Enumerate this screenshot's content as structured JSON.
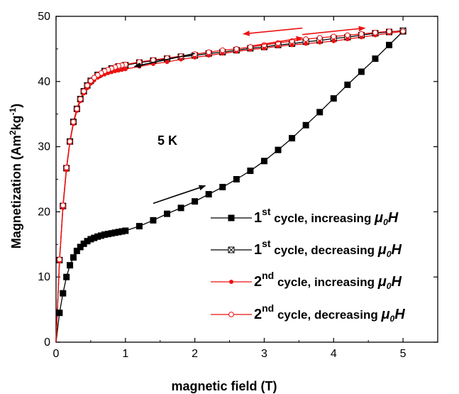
{
  "chart_data": {
    "type": "line",
    "title": "",
    "xlabel": "magnetic field (T)",
    "ylabel": {
      "main": "Magnetization (Am",
      "sup1": "2",
      "mid": "kg",
      "sup2": "-1",
      "end": ")"
    },
    "xlim": [
      0,
      5.5
    ],
    "ylim": [
      0,
      50
    ],
    "xticks": [
      0,
      1,
      2,
      3,
      4,
      5
    ],
    "yticks": [
      0,
      10,
      20,
      30,
      40,
      50
    ],
    "grid": false,
    "legend_position": "center-right",
    "annotation": "5 K",
    "series": [
      {
        "label": {
          "ord": "1",
          "sup": "st",
          "text": " cycle, increasing ",
          "mu": "μ",
          "sub": "0",
          "h": "H"
        },
        "color": "#000000",
        "marker": "filled-square",
        "points": [
          [
            0,
            0
          ],
          [
            0.05,
            4.5
          ],
          [
            0.1,
            7.5
          ],
          [
            0.15,
            10
          ],
          [
            0.2,
            11.8
          ],
          [
            0.25,
            13
          ],
          [
            0.3,
            14
          ],
          [
            0.35,
            14.6
          ],
          [
            0.4,
            15.1
          ],
          [
            0.45,
            15.5
          ],
          [
            0.5,
            15.8
          ],
          [
            0.55,
            16.0
          ],
          [
            0.6,
            16.2
          ],
          [
            0.65,
            16.35
          ],
          [
            0.7,
            16.5
          ],
          [
            0.75,
            16.6
          ],
          [
            0.8,
            16.7
          ],
          [
            0.85,
            16.8
          ],
          [
            0.9,
            16.9
          ],
          [
            0.95,
            17.0
          ],
          [
            1.0,
            17.1
          ],
          [
            1.2,
            17.8
          ],
          [
            1.4,
            18.7
          ],
          [
            1.6,
            19.7
          ],
          [
            1.8,
            20.6
          ],
          [
            2.0,
            21.6
          ],
          [
            2.2,
            22.7
          ],
          [
            2.4,
            23.8
          ],
          [
            2.6,
            25.0
          ],
          [
            2.8,
            26.3
          ],
          [
            3.0,
            27.8
          ],
          [
            3.2,
            29.5
          ],
          [
            3.4,
            31.3
          ],
          [
            3.6,
            33.3
          ],
          [
            3.8,
            35.3
          ],
          [
            4.0,
            37.4
          ],
          [
            4.2,
            39.5
          ],
          [
            4.4,
            41.5
          ],
          [
            4.6,
            43.5
          ],
          [
            4.8,
            45.6
          ],
          [
            5.0,
            47.7
          ]
        ]
      },
      {
        "label": {
          "ord": "1",
          "sup": "st",
          "text": " cycle, decreasing ",
          "mu": "μ",
          "sub": "0",
          "h": "H"
        },
        "color": "#000000",
        "marker": "crossed-square",
        "points": [
          [
            5.0,
            47.8
          ],
          [
            4.8,
            47.6
          ],
          [
            4.6,
            47.4
          ],
          [
            4.4,
            47.1
          ],
          [
            4.2,
            46.8
          ],
          [
            4.0,
            46.6
          ],
          [
            3.8,
            46.3
          ],
          [
            3.6,
            46.1
          ],
          [
            3.4,
            45.8
          ],
          [
            3.2,
            45.6
          ],
          [
            3.0,
            45.3
          ],
          [
            2.8,
            45.1
          ],
          [
            2.6,
            44.8
          ],
          [
            2.4,
            44.5
          ],
          [
            2.2,
            44.3
          ],
          [
            2.0,
            44.0
          ],
          [
            1.8,
            43.8
          ],
          [
            1.6,
            43.5
          ],
          [
            1.4,
            43.2
          ],
          [
            1.2,
            42.9
          ],
          [
            1.0,
            42.5
          ],
          [
            0.9,
            42.3
          ],
          [
            0.8,
            42.0
          ],
          [
            0.7,
            41.6
          ],
          [
            0.6,
            41.0
          ],
          [
            0.5,
            40.1
          ],
          [
            0.45,
            39.4
          ],
          [
            0.4,
            38.5
          ],
          [
            0.35,
            37.3
          ],
          [
            0.3,
            35.8
          ],
          [
            0.25,
            33.8
          ],
          [
            0.2,
            30.8
          ],
          [
            0.15,
            26.7
          ],
          [
            0.1,
            20.9
          ],
          [
            0.05,
            12.6
          ],
          [
            0,
            0
          ]
        ]
      },
      {
        "label": {
          "ord": "2",
          "sup": "nd",
          "text": " cycle, increasing ",
          "mu": "μ",
          "sub": "0",
          "h": "H"
        },
        "color": "#ee1111",
        "marker": "filled-circle",
        "points": [
          [
            0,
            0
          ],
          [
            0.05,
            12.4
          ],
          [
            0.1,
            20.6
          ],
          [
            0.15,
            26.4
          ],
          [
            0.2,
            30.6
          ],
          [
            0.25,
            33.5
          ],
          [
            0.3,
            35.5
          ],
          [
            0.35,
            37.0
          ],
          [
            0.4,
            38.2
          ],
          [
            0.45,
            39.0
          ],
          [
            0.5,
            39.7
          ],
          [
            0.55,
            40.2
          ],
          [
            0.6,
            40.6
          ],
          [
            0.65,
            40.9
          ],
          [
            0.7,
            41.1
          ],
          [
            0.75,
            41.3
          ],
          [
            0.8,
            41.45
          ],
          [
            0.85,
            41.6
          ],
          [
            0.9,
            41.7
          ],
          [
            0.95,
            41.8
          ],
          [
            1.0,
            41.9
          ],
          [
            1.2,
            42.3
          ],
          [
            1.4,
            42.7
          ],
          [
            1.6,
            43.0
          ],
          [
            1.8,
            43.4
          ],
          [
            2.0,
            43.7
          ],
          [
            2.2,
            44.0
          ],
          [
            2.4,
            44.3
          ],
          [
            2.6,
            44.6
          ],
          [
            2.8,
            44.9
          ],
          [
            3.0,
            45.1
          ],
          [
            3.2,
            45.4
          ],
          [
            3.4,
            45.6
          ],
          [
            3.6,
            45.8
          ],
          [
            3.8,
            46.0
          ],
          [
            4.0,
            46.2
          ],
          [
            4.2,
            46.5
          ],
          [
            4.4,
            46.8
          ],
          [
            4.6,
            47.1
          ],
          [
            4.8,
            47.4
          ],
          [
            5.0,
            47.7
          ]
        ]
      },
      {
        "label": {
          "ord": "2",
          "sup": "nd",
          "text": " cycle, decreasing ",
          "mu": "μ",
          "sub": "0",
          "h": "H"
        },
        "color": "#ee1111",
        "marker": "open-circle",
        "points": [
          [
            5.0,
            47.7
          ],
          [
            4.8,
            47.7
          ],
          [
            4.6,
            47.5
          ],
          [
            4.4,
            47.3
          ],
          [
            4.2,
            47.1
          ],
          [
            4.0,
            46.9
          ],
          [
            3.8,
            46.7
          ],
          [
            3.6,
            46.5
          ],
          [
            3.4,
            46.2
          ],
          [
            3.2,
            45.9
          ],
          [
            3.0,
            45.6
          ],
          [
            2.8,
            45.3
          ],
          [
            2.6,
            45.0
          ],
          [
            2.4,
            44.8
          ],
          [
            2.2,
            44.5
          ],
          [
            2.0,
            44.2
          ],
          [
            1.8,
            43.9
          ],
          [
            1.6,
            43.6
          ],
          [
            1.4,
            43.3
          ],
          [
            1.2,
            43.0
          ],
          [
            1.0,
            42.6
          ],
          [
            0.95,
            42.5
          ],
          [
            0.9,
            42.4
          ],
          [
            0.85,
            42.2
          ],
          [
            0.8,
            42.0
          ],
          [
            0.75,
            41.8
          ],
          [
            0.7,
            41.6
          ],
          [
            0.65,
            41.3
          ],
          [
            0.6,
            41.0
          ],
          [
            0.55,
            40.6
          ],
          [
            0.5,
            40.1
          ],
          [
            0.45,
            39.4
          ],
          [
            0.4,
            38.5
          ],
          [
            0.35,
            37.3
          ],
          [
            0.3,
            35.8
          ],
          [
            0.25,
            33.8
          ],
          [
            0.2,
            30.8
          ],
          [
            0.15,
            26.8
          ],
          [
            0.1,
            21.0
          ],
          [
            0.05,
            12.7
          ],
          [
            0,
            0
          ]
        ]
      }
    ],
    "arrows": [
      {
        "color": "#000000",
        "from": [
          1.4,
          21.3
        ],
        "to": [
          2.15,
          24.0
        ]
      },
      {
        "color": "#000000",
        "from": [
          2.0,
          44.3
        ],
        "to": [
          1.13,
          42.3
        ]
      },
      {
        "color": "#ee1111",
        "from": [
          3.55,
          48.2
        ],
        "to": [
          2.7,
          47.3
        ]
      },
      {
        "color": "#ee1111",
        "from": [
          2.85,
          45.5
        ],
        "to": [
          3.55,
          46.7
        ]
      },
      {
        "color": "#ee1111",
        "from": [
          3.55,
          47.2
        ],
        "to": [
          4.45,
          48.2
        ]
      }
    ]
  }
}
